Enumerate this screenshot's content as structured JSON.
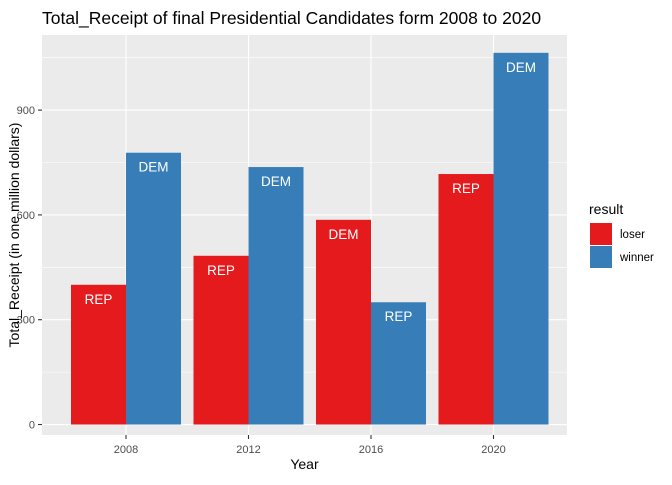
{
  "chart_data": {
    "type": "bar",
    "title": "Total_Receipt of final Presidential Candidates form 2008 to 2020",
    "xlabel": "Year",
    "ylabel": "Total_Receipt (in one million dollars)",
    "categories": [
      "2008",
      "2012",
      "2016",
      "2020"
    ],
    "series": [
      {
        "name": "loser",
        "color": "#E41A1C",
        "values": [
          400,
          483,
          586,
          717
        ],
        "labels": [
          "REP",
          "REP",
          "DEM",
          "REP"
        ]
      },
      {
        "name": "winner",
        "color": "#377EB8",
        "values": [
          778,
          737,
          350,
          1064
        ],
        "labels": [
          "DEM",
          "DEM",
          "REP",
          "DEM"
        ]
      }
    ],
    "ylim": [
      -30,
      1115
    ],
    "yticks": [
      0,
      300,
      600,
      900
    ],
    "grid": true,
    "legend": {
      "title": "result",
      "position": "right"
    },
    "panel_background": "#EBEBEB"
  }
}
